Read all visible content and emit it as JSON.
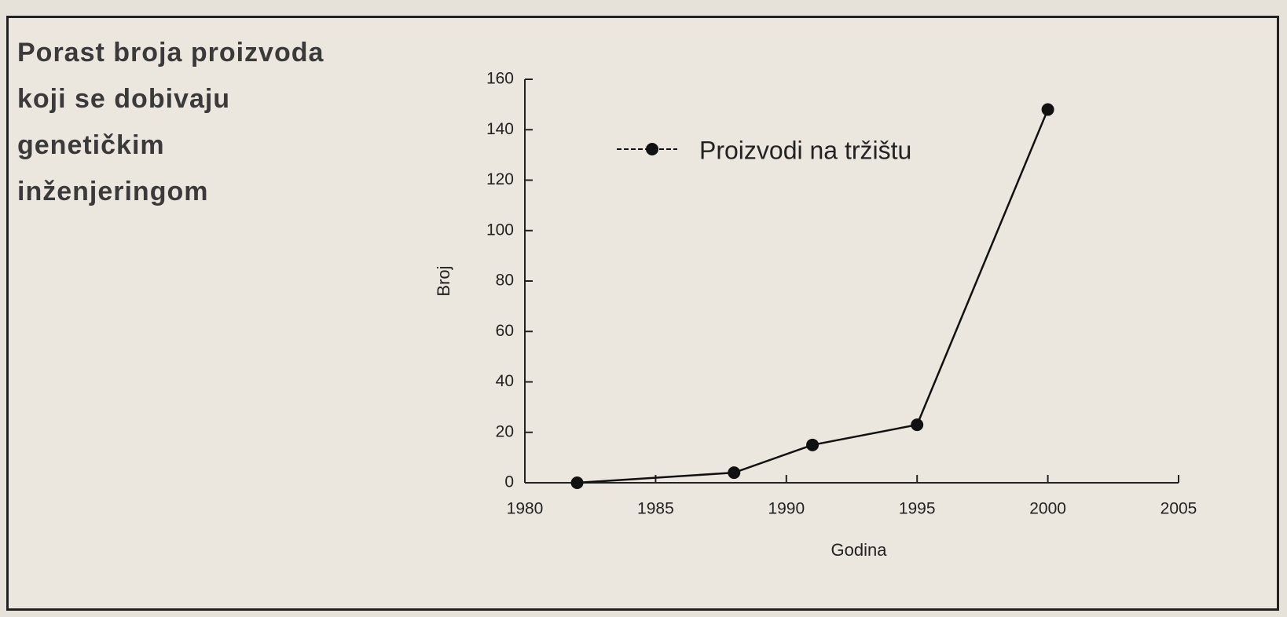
{
  "chart_data": {
    "type": "line",
    "title": "Porast broja proizvoda\nkoji se dobivaju\ngenetičkim\ninženjeringom",
    "x_label": "Godina",
    "y_label": "Broj",
    "x": [
      1982,
      1988,
      1991,
      1995,
      2000
    ],
    "series": [
      {
        "name": "Proizvodi na tržištu",
        "color": "#111111",
        "values": [
          0,
          4,
          15,
          23,
          148
        ]
      }
    ],
    "xlim": [
      1980,
      2005
    ],
    "xticks": [
      1980,
      1985,
      1990,
      1995,
      2000,
      2005
    ],
    "ylim": [
      0,
      160
    ],
    "yticks": [
      0,
      20,
      40,
      60,
      80,
      100,
      120,
      140,
      160
    ]
  }
}
